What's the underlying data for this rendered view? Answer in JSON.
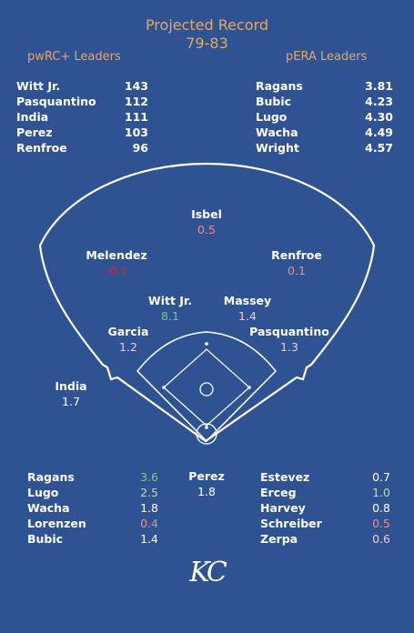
{
  "header": {
    "title": "Projected Record",
    "record": "79-83"
  },
  "pwrc": {
    "label": "pwRC+ Leaders",
    "rows": [
      {
        "name": "Witt Jr.",
        "value": "143"
      },
      {
        "name": "Pasquantino",
        "value": "112"
      },
      {
        "name": "India",
        "value": "111"
      },
      {
        "name": "Perez",
        "value": "103"
      },
      {
        "name": "Renfroe",
        "value": "96"
      }
    ]
  },
  "pera": {
    "label": "pERA Leaders",
    "rows": [
      {
        "name": "Ragans",
        "value": "3.81"
      },
      {
        "name": "Bubic",
        "value": "4.23"
      },
      {
        "name": "Lugo",
        "value": "4.30"
      },
      {
        "name": "Wacha",
        "value": "4.49"
      },
      {
        "name": "Wright",
        "value": "4.57"
      }
    ]
  },
  "field": {
    "cf": {
      "name": "Isbel",
      "value": "0.5",
      "color": "#f08a8a"
    },
    "lf": {
      "name": "Melendez",
      "value": "-0.5",
      "color": "#e21f26"
    },
    "rf": {
      "name": "Renfroe",
      "value": "0.1",
      "color": "#f08a8a"
    },
    "ss": {
      "name": "Witt Jr.",
      "value": "8.1",
      "color": "#7fc97f"
    },
    "b2": {
      "name": "Massey",
      "value": "1.4",
      "color": "#f4c6d2"
    },
    "b3": {
      "name": "Garcia",
      "value": "1.2",
      "color": "#f4c6d2"
    },
    "b1": {
      "name": "Pasquantino",
      "value": "1.3",
      "color": "#f4c6d2"
    },
    "dh": {
      "name": "India",
      "value": "1.7",
      "color": "#ffffff"
    },
    "c": {
      "name": "Perez",
      "value": "1.8",
      "color": "#ffffff"
    }
  },
  "starters": [
    {
      "name": "Ragans",
      "value": "3.6",
      "color": "#7fc97f"
    },
    {
      "name": "Lugo",
      "value": "2.5",
      "color": "#b5dfa0"
    },
    {
      "name": "Wacha",
      "value": "1.8",
      "color": "#ffffff"
    },
    {
      "name": "Lorenzen",
      "value": "0.4",
      "color": "#f08a8a"
    },
    {
      "name": "Bubic",
      "value": "1.4",
      "color": "#ffffff"
    }
  ],
  "relievers": [
    {
      "name": "Estevez",
      "value": "0.7",
      "color": "#ffffff"
    },
    {
      "name": "Erceg",
      "value": "1.0",
      "color": "#b5dfa0"
    },
    {
      "name": "Harvey",
      "value": "0.8",
      "color": "#ffffff"
    },
    {
      "name": "Schreiber",
      "value": "0.5",
      "color": "#f08a8a"
    },
    {
      "name": "Zerpa",
      "value": "0.6",
      "color": "#f4c6d2"
    }
  ],
  "logo": {
    "text": "KC"
  }
}
